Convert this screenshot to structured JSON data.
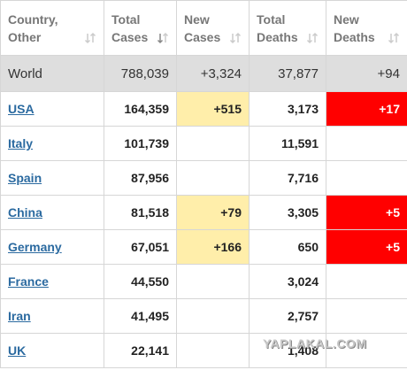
{
  "table": {
    "columns": [
      "Country, Other",
      "Total Cases",
      "New Cases",
      "Total Deaths",
      "New Deaths"
    ],
    "rows": [
      [
        "World",
        "788,039",
        "+3,324",
        "37,877",
        "+94"
      ],
      [
        "USA",
        "164,359",
        "+515",
        "3,173",
        "+17"
      ],
      [
        "Italy",
        "101,739",
        null,
        "11,591",
        null
      ],
      [
        "Spain",
        "87,956",
        null,
        "7,716",
        null
      ],
      [
        "China",
        "81,518",
        "+79",
        "3,305",
        "+5"
      ],
      [
        "Germany",
        "67,051",
        "+166",
        "650",
        "+5"
      ],
      [
        "France",
        "44,550",
        null,
        "3,024",
        null
      ],
      [
        "Iran",
        "41,495",
        null,
        "2,757",
        null
      ],
      [
        "UK",
        "22,141",
        null,
        "1,408",
        null
      ]
    ]
  },
  "watermark": "YAPLAKAL.COM"
}
